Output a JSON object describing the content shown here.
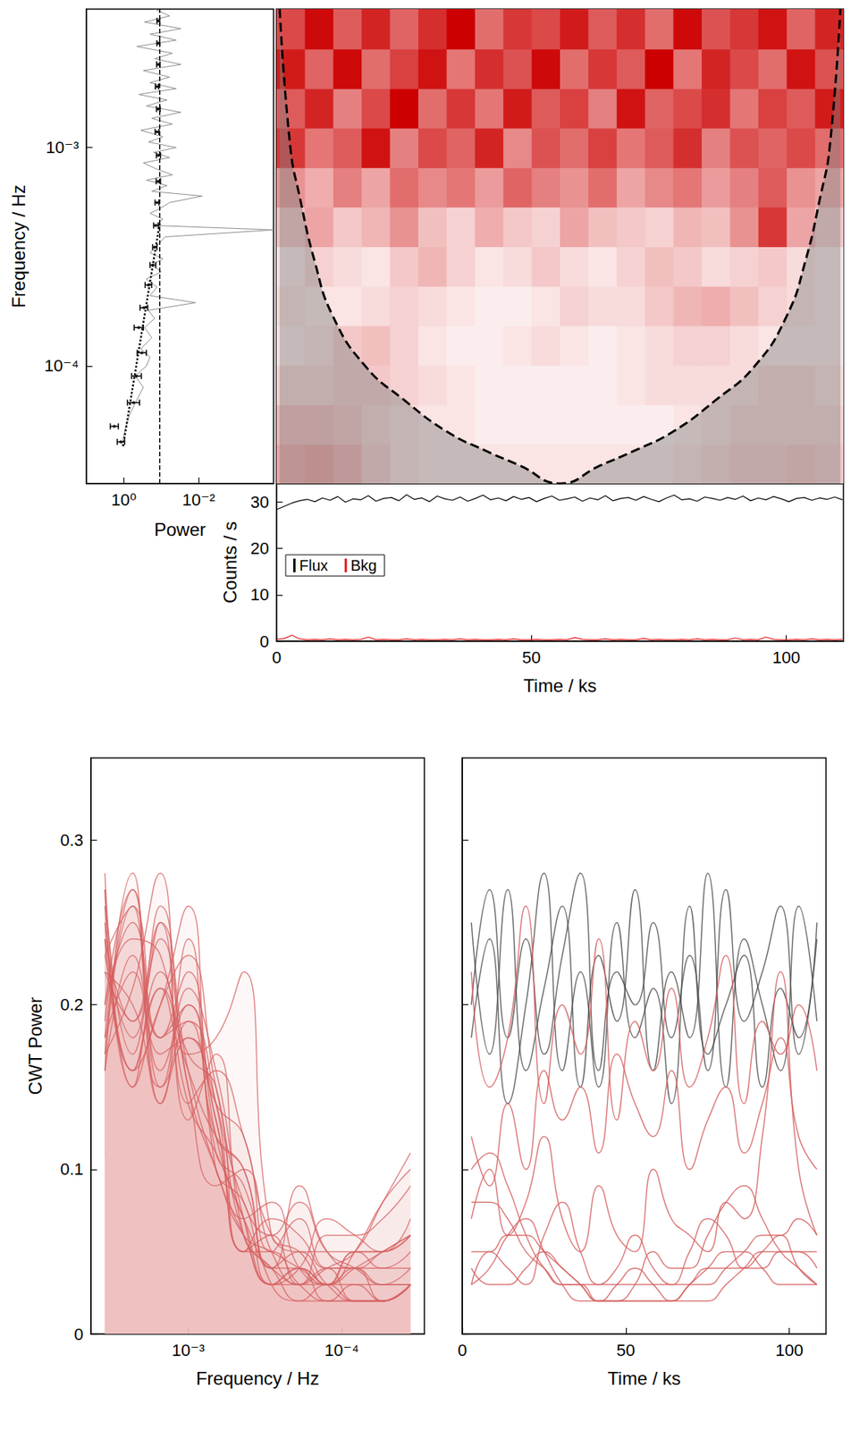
{
  "chart_data": [
    {
      "type": "spectrum",
      "xlabel": "Power",
      "ylabel": "Frequency / Hz",
      "log": true,
      "xlim": [
        10,
        0.0001
      ],
      "xticks": [
        {
          "value": 1,
          "label": "10⁰"
        },
        {
          "value": 0.01,
          "label": "10⁻²"
        }
      ],
      "ylim": [
        2.9e-05,
        0.0043
      ],
      "yticks": [
        {
          "value": 0.0001,
          "label": "10⁻⁴"
        },
        {
          "value": 0.001,
          "label": "10⁻³"
        }
      ],
      "series": [
        {
          "type": "line",
          "color": "#8c8c8c",
          "line_style": "solid",
          "freq": [
            4.4e-05,
            5.2e-05,
            6e-05,
            7e-05,
            8e-05,
            9e-05,
            0.0001,
            0.00011,
            0.00012,
            0.000135,
            0.00015,
            0.000165,
            0.00018,
            0.000195,
            0.00021,
            0.00023,
            0.00025,
            0.00027,
            0.00029,
            0.00031,
            0.00033,
            0.00036,
            0.00039,
            0.00042,
            0.00044,
            0.00047,
            0.0005,
            0.00053,
            0.00056,
            0.0006,
            0.00063,
            0.00067,
            0.00071,
            0.00075,
            0.0008,
            0.00085,
            0.0009,
            0.00095,
            0.001,
            0.00106,
            0.00112,
            0.0012,
            0.00128,
            0.00136,
            0.00145,
            0.00155,
            0.00165,
            0.00175,
            0.00186,
            0.00198,
            0.0021,
            0.00225,
            0.0024,
            0.00255,
            0.0027,
            0.0029,
            0.0031,
            0.0033,
            0.0035,
            0.00375,
            0.004,
            0.0043
          ],
          "power": [
            1.1,
            0.9,
            0.7,
            0.45,
            0.3,
            0.5,
            0.25,
            0.2,
            0.35,
            0.18,
            0.28,
            0.15,
            0.22,
            0.012,
            0.2,
            0.13,
            0.25,
            0.1,
            0.18,
            0.09,
            0.2,
            0.12,
            0.08,
            0.0001,
            0.15,
            0.09,
            0.2,
            0.1,
            0.06,
            0.008,
            0.18,
            0.07,
            0.25,
            0.05,
            0.14,
            0.3,
            0.06,
            0.16,
            0.04,
            0.22,
            0.09,
            0.35,
            0.05,
            0.18,
            0.03,
            0.25,
            0.07,
            0.4,
            0.04,
            0.2,
            0.06,
            0.3,
            0.03,
            0.15,
            0.05,
            0.45,
            0.04,
            0.2,
            0.03,
            0.28,
            0.06,
            0.15
          ]
        },
        {
          "type": "scatter",
          "color": "#000000",
          "marker": "circle",
          "freq": [
            4.5e-05,
            5.3e-05,
            6.8e-05,
            9e-05,
            0.000115,
            0.00015,
            0.000185,
            0.000235,
            0.00029,
            0.00035,
            0.00044,
            0.00056,
            0.0007,
            0.00092,
            0.00118,
            0.0015,
            0.0019,
            0.0024,
            0.003,
            0.0038
          ],
          "power": [
            1.2,
            1.8,
            0.55,
            0.46,
            0.33,
            0.4,
            0.29,
            0.22,
            0.17,
            0.15,
            0.14,
            0.13,
            0.12,
            0.12,
            0.13,
            0.12,
            0.13,
            0.12,
            0.12,
            0.12
          ],
          "power_err_low": [
            0.95,
            1.4,
            0.38,
            0.34,
            0.25,
            0.3,
            0.23,
            0.18,
            0.14,
            0.13,
            0.12,
            0.115,
            0.105,
            0.105,
            0.115,
            0.107,
            0.117,
            0.108,
            0.11,
            0.11
          ],
          "power_err_high": [
            1.5,
            2.3,
            0.8,
            0.62,
            0.44,
            0.53,
            0.37,
            0.27,
            0.2,
            0.17,
            0.16,
            0.147,
            0.137,
            0.135,
            0.146,
            0.134,
            0.144,
            0.133,
            0.131,
            0.13
          ]
        },
        {
          "type": "line",
          "color": "#000000",
          "line_style": "dotted",
          "freq": [
            4.3e-05,
            0.00045
          ],
          "power": [
            1.05,
            0.11
          ]
        },
        {
          "type": "vline",
          "color": "#000000",
          "line_style": "dashed",
          "power": 0.11
        }
      ]
    },
    {
      "type": "heatmap",
      "log": "y",
      "tick_labels": false,
      "xlim": [
        0,
        111.2
      ],
      "xticks": [
        0,
        50,
        100
      ],
      "ylim": [
        2.9e-05,
        0.0043
      ],
      "yticks": [
        {
          "value": 0.0001,
          "label": "10⁻⁴"
        },
        {
          "value": 0.001,
          "label": "10⁻³"
        }
      ],
      "time_bins": [
        0,
        5.56,
        11.12,
        16.68,
        22.24,
        27.8,
        33.36,
        38.92,
        44.48,
        50.04,
        55.6,
        61.16,
        66.72,
        72.28,
        77.84,
        83.4,
        88.96,
        94.52,
        100.08,
        105.64,
        111.2
      ],
      "freq_bins": [
        2.9e-05,
        4.4e-05,
        6.67e-05,
        0.0001012,
        0.0001535,
        0.0002328,
        0.000353,
        0.000536,
        0.000812,
        0.001232,
        0.001868,
        0.002834,
        0.0043
      ],
      "power": [
        [
          0.1,
          0.11,
          0.09,
          0.06,
          0.04,
          0.03,
          0.03,
          0.03,
          0.03,
          0.03,
          0.03,
          0.03,
          0.03,
          0.03,
          0.04,
          0.05,
          0.06,
          0.06,
          0.07,
          0.06
        ],
        [
          0.08,
          0.08,
          0.07,
          0.05,
          0.04,
          0.03,
          0.03,
          0.02,
          0.02,
          0.02,
          0.02,
          0.02,
          0.02,
          0.02,
          0.03,
          0.04,
          0.05,
          0.05,
          0.05,
          0.05
        ],
        [
          0.05,
          0.05,
          0.06,
          0.06,
          0.05,
          0.04,
          0.03,
          0.02,
          0.02,
          0.02,
          0.02,
          0.02,
          0.03,
          0.04,
          0.04,
          0.04,
          0.04,
          0.05,
          0.05,
          0.04
        ],
        [
          0.03,
          0.04,
          0.06,
          0.07,
          0.05,
          0.03,
          0.02,
          0.02,
          0.03,
          0.04,
          0.03,
          0.02,
          0.03,
          0.04,
          0.05,
          0.05,
          0.04,
          0.03,
          0.03,
          0.03
        ],
        [
          0.04,
          0.03,
          0.03,
          0.04,
          0.05,
          0.04,
          0.03,
          0.02,
          0.02,
          0.03,
          0.05,
          0.04,
          0.04,
          0.06,
          0.08,
          0.09,
          0.07,
          0.05,
          0.04,
          0.03
        ],
        [
          0.03,
          0.05,
          0.04,
          0.03,
          0.06,
          0.08,
          0.05,
          0.03,
          0.04,
          0.06,
          0.04,
          0.03,
          0.05,
          0.07,
          0.06,
          0.04,
          0.05,
          0.06,
          0.04,
          0.03
        ],
        [
          0.07,
          0.1,
          0.06,
          0.08,
          0.12,
          0.07,
          0.05,
          0.09,
          0.06,
          0.05,
          0.1,
          0.07,
          0.06,
          0.05,
          0.08,
          0.07,
          0.12,
          0.22,
          0.1,
          0.06
        ],
        [
          0.12,
          0.09,
          0.14,
          0.1,
          0.16,
          0.13,
          0.15,
          0.11,
          0.17,
          0.14,
          0.12,
          0.16,
          0.1,
          0.13,
          0.15,
          0.11,
          0.14,
          0.18,
          0.12,
          0.1
        ],
        [
          0.22,
          0.15,
          0.18,
          0.26,
          0.14,
          0.2,
          0.17,
          0.24,
          0.13,
          0.19,
          0.16,
          0.21,
          0.15,
          0.18,
          0.23,
          0.14,
          0.19,
          0.17,
          0.2,
          0.16
        ],
        [
          0.18,
          0.24,
          0.14,
          0.2,
          0.28,
          0.16,
          0.22,
          0.15,
          0.25,
          0.18,
          0.21,
          0.14,
          0.26,
          0.17,
          0.2,
          0.23,
          0.15,
          0.21,
          0.18,
          0.25
        ],
        [
          0.25,
          0.17,
          0.27,
          0.16,
          0.21,
          0.26,
          0.15,
          0.23,
          0.19,
          0.27,
          0.16,
          0.22,
          0.18,
          0.28,
          0.15,
          0.24,
          0.2,
          0.16,
          0.26,
          0.19
        ],
        [
          0.2,
          0.27,
          0.18,
          0.24,
          0.17,
          0.23,
          0.28,
          0.16,
          0.22,
          0.2,
          0.25,
          0.18,
          0.23,
          0.16,
          0.27,
          0.19,
          0.22,
          0.26,
          0.17,
          0.24
        ]
      ],
      "cone_of_influence": {
        "time": [
          0.6,
          2.7,
          4.5,
          7.5,
          11,
          17.4,
          25,
          33.5,
          41,
          47.8,
          55.6,
          63.4,
          70.2,
          77.7,
          86.2,
          93.8,
          100.1,
          103.7,
          106.7,
          108.5,
          110.6
        ],
        "freq": [
          0.0043,
          0.001,
          0.0006,
          0.0003,
          0.00017,
          0.0001,
          7e-05,
          5e-05,
          4.1e-05,
          3.5e-05,
          2.9e-05,
          3.5e-05,
          4.1e-05,
          5e-05,
          7e-05,
          0.0001,
          0.00017,
          0.0003,
          0.0006,
          0.001,
          0.0043
        ]
      },
      "freq_cutoff": 0.00093
    },
    {
      "type": "line",
      "xlabel": "Time / ks",
      "ylabel": "Counts / s",
      "legend": "lower left",
      "xlim": [
        0,
        111.2
      ],
      "xticks": [
        0,
        50,
        100
      ],
      "ylim": [
        0,
        34
      ],
      "yticks": [
        0,
        10,
        20,
        30
      ],
      "x": [
        0,
        1.5,
        3,
        4.5,
        6,
        7.5,
        9,
        10.5,
        12,
        13.5,
        15,
        16.5,
        18,
        19.5,
        21,
        22.5,
        24,
        25.5,
        27,
        28.5,
        30,
        31.5,
        33,
        34.5,
        36,
        37.5,
        39,
        40.5,
        42,
        43.5,
        45,
        46.5,
        48,
        49.5,
        51,
        52.5,
        54,
        55.5,
        57,
        58.5,
        60,
        61.5,
        63,
        64.5,
        66,
        67.5,
        69,
        70.5,
        72,
        73.5,
        75,
        76.5,
        78,
        79.5,
        81,
        82.5,
        84,
        85.5,
        87,
        88.5,
        90,
        91.5,
        93,
        94.5,
        96,
        97.5,
        99,
        100.5,
        102,
        103.5,
        105,
        106.5,
        108,
        109.5,
        111
      ],
      "series": [
        {
          "name": "Flux",
          "color": "#000000",
          "values": [
            28.4,
            29.1,
            29.8,
            30.3,
            30.6,
            30.1,
            30.9,
            30.4,
            31.2,
            30.0,
            30.7,
            30.5,
            31.4,
            30.2,
            30.8,
            31.0,
            30.3,
            31.6,
            30.6,
            30.9,
            30.1,
            31.3,
            30.7,
            30.4,
            31.1,
            30.2,
            30.8,
            31.5,
            30.5,
            30.9,
            30.3,
            31.2,
            30.6,
            31.0,
            30.1,
            30.8,
            31.3,
            30.4,
            30.7,
            31.1,
            30.2,
            30.9,
            30.5,
            31.4,
            30.3,
            30.8,
            31.0,
            30.4,
            31.2,
            30.6,
            30.1,
            30.9,
            31.5,
            30.5,
            30.7,
            30.2,
            31.1,
            30.8,
            30.4,
            31.0,
            30.6,
            31.3,
            30.3,
            30.9,
            30.5,
            31.2,
            30.7,
            30.1,
            30.8,
            31.0,
            30.4,
            30.9,
            30.6,
            31.1,
            30.5
          ]
        },
        {
          "name": "Bkg",
          "color": "#e41a1c",
          "values": [
            0.4,
            0.6,
            1.3,
            0.5,
            0.3,
            0.4,
            0.3,
            0.5,
            0.3,
            0.4,
            0.3,
            0.4,
            0.9,
            0.3,
            0.4,
            0.3,
            0.3,
            0.5,
            0.3,
            0.4,
            0.3,
            0.3,
            0.4,
            0.3,
            0.5,
            0.3,
            0.4,
            0.3,
            0.3,
            0.4,
            0.3,
            0.5,
            0.3,
            0.3,
            0.4,
            0.3,
            0.3,
            0.4,
            0.3,
            0.8,
            0.4,
            0.3,
            0.3,
            0.5,
            0.3,
            0.4,
            0.3,
            0.3,
            0.6,
            0.3,
            0.4,
            0.3,
            0.3,
            0.4,
            0.3,
            0.5,
            0.3,
            0.4,
            0.3,
            0.3,
            0.7,
            0.3,
            0.4,
            0.3,
            0.9,
            0.4,
            0.3,
            0.3,
            0.4,
            0.3,
            0.5,
            0.3,
            0.4,
            0.3,
            0.4
          ]
        }
      ]
    },
    {
      "type": "surface",
      "xlabel": "Frequency / Hz",
      "ylabel": "Time / ks",
      "zlabel": "CWT Power",
      "log": "x",
      "xlim": [
        0.0043,
        2.9e-05
      ],
      "xticks": [
        {
          "value": 0.0001,
          "label": "10⁻⁴"
        },
        {
          "value": 0.001,
          "label": "10⁻³"
        }
      ],
      "ylim": [
        0,
        111.2
      ],
      "yticks": [
        0,
        50,
        100
      ],
      "zlim": [
        0,
        0.35
      ],
      "zticks": [
        0,
        0.1,
        0.2,
        0.3
      ]
    }
  ]
}
